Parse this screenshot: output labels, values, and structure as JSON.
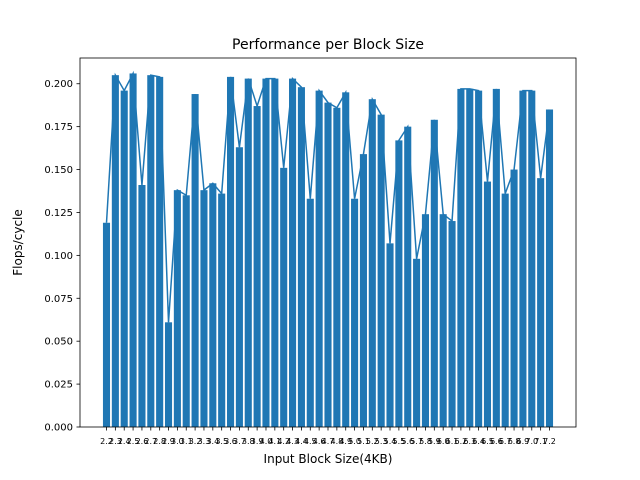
{
  "chart_data": {
    "type": "bar",
    "title": "Performance per Block Size",
    "xlabel": "Input Block Size(4KB)",
    "ylabel": "Flops/cycle",
    "ylim": [
      0,
      0.215
    ],
    "yticks": [
      "0.000",
      "0.025",
      "0.050",
      "0.075",
      "0.100",
      "0.125",
      "0.150",
      "0.175",
      "0.200"
    ],
    "grid": false,
    "bar_color": "#1f77b4",
    "line_color": "#1f77b4",
    "categories": [
      "2.2",
      "2.3",
      "2.4",
      "2.5",
      "2.6",
      "2.7",
      "2.8",
      "2.9",
      "3.0",
      "3.1",
      "3.2",
      "3.3",
      "3.4",
      "3.5",
      "3.6",
      "3.7",
      "3.8",
      "3.9",
      "4.0",
      "4.1",
      "4.2",
      "4.3",
      "4.4",
      "4.5",
      "4.6",
      "4.7",
      "4.8",
      "4.9",
      "5.0",
      "5.1",
      "5.2",
      "5.3",
      "5.4",
      "5.5",
      "5.6",
      "5.7",
      "5.8",
      "5.9",
      "6.0",
      "6.1",
      "6.2",
      "6.3",
      "6.4",
      "6.5",
      "6.6",
      "6.7",
      "6.8",
      "6.9",
      "7.0",
      "7.1",
      "7.2"
    ],
    "values": [
      0.119,
      0.205,
      0.196,
      0.206,
      0.141,
      0.205,
      0.204,
      0.061,
      0.138,
      0.135,
      0.194,
      0.138,
      0.142,
      0.136,
      0.204,
      0.163,
      0.203,
      0.187,
      0.203,
      0.203,
      0.151,
      0.203,
      0.198,
      0.133,
      0.196,
      0.189,
      0.186,
      0.195,
      0.133,
      0.159,
      0.191,
      0.182,
      0.107,
      0.167,
      0.175,
      0.098,
      0.124,
      0.179,
      0.124,
      0.12,
      0.197,
      0.197,
      0.196,
      0.143,
      0.197,
      0.136,
      0.15,
      0.196,
      0.196,
      0.145,
      0.185
    ]
  }
}
